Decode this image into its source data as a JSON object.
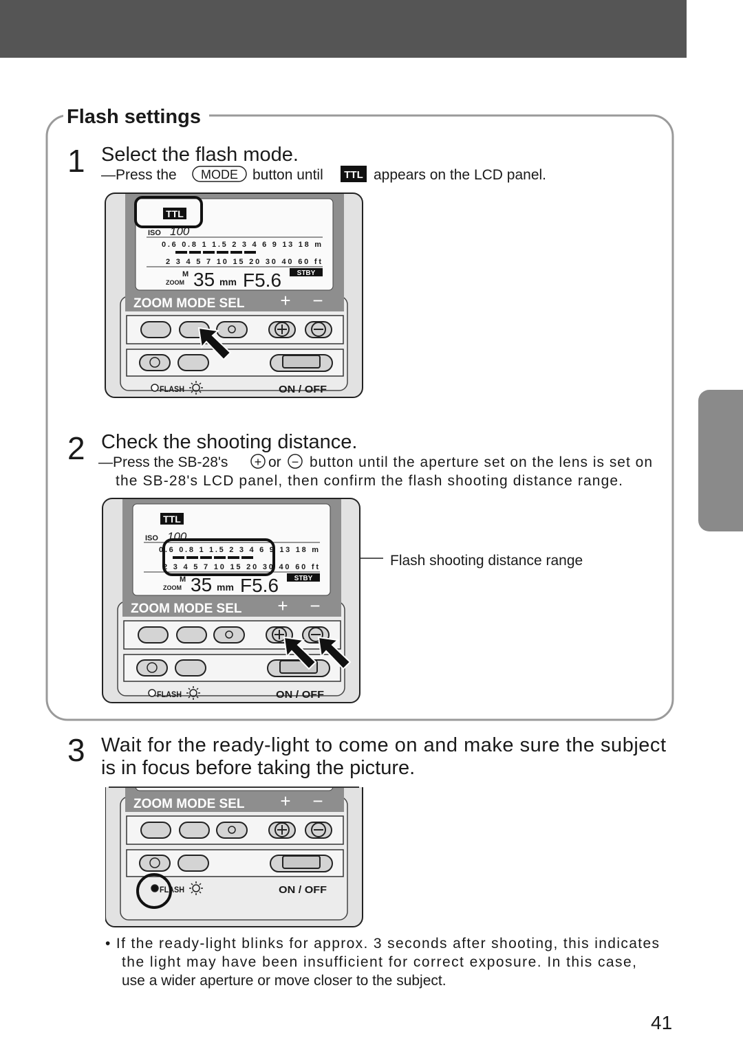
{
  "page_number": "41",
  "section": {
    "title": "Flash settings",
    "steps": [
      {
        "number": "1",
        "heading": "Select the flash mode.",
        "instruction": {
          "before": "—Press the",
          "button": "MODE",
          "middle": "button until",
          "icon": "TTL",
          "after": "appears on the LCD panel."
        }
      },
      {
        "number": "2",
        "heading": "Check the shooting distance.",
        "instruction": {
          "before": "—Press the SB-28's",
          "plus": "+",
          "or": "or",
          "minus": "−",
          "line1_rest": "button until the aperture set on the lens is set on",
          "line2": "the SB-28's LCD panel, then confirm the flash shooting distance range."
        },
        "callout": "Flash shooting distance range"
      }
    ]
  },
  "step3": {
    "number": "3",
    "heading_lines": [
      "Wait for the ready-light to come on and make sure the subject",
      "is in focus before taking the picture."
    ]
  },
  "device": {
    "lcd": {
      "mode": "TTL",
      "iso_label": "ISO",
      "iso": "100",
      "m_scale": "0.6 0.8 1 1.5 2 3 4 6 9 13 18 m",
      "ft_scale": "2 3 4 5 7 10 15 20 30 40 60 ft",
      "zoom_mode": "M",
      "zoom_label": "ZOOM",
      "zoom": "35",
      "zoom_unit": "mm",
      "aperture": "F5.6",
      "standby": "STBY"
    },
    "panel": {
      "buttons_label": "ZOOM MODE SEL",
      "plus": "+",
      "minus": "−",
      "ready_light": "FLASH",
      "power": "ON / OFF"
    }
  },
  "note": [
    "• If the ready-light blinks for approx. 3 seconds after shooting, this indicates",
    "the light may have been insufficient for correct exposure. In this case,",
    "use a wider aperture or move closer to the subject."
  ]
}
